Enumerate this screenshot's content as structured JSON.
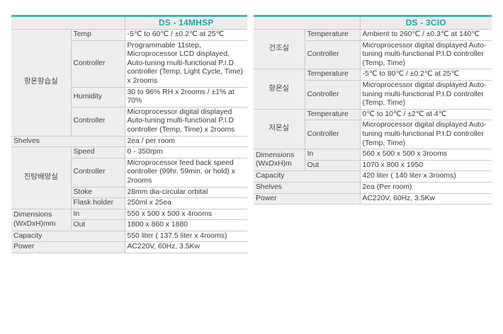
{
  "left": {
    "title": "DS - 14MHSP",
    "rows": [
      {
        "group": "항온항습실",
        "label": "Temp",
        "value": "-5℃ to 60℃ / ±0.2℃ at 25℃"
      },
      {
        "group": "",
        "label": "Controller",
        "value": "Programmable 11step, Microprocessor LCD displayed, Auto-tuning multi-functional P.I.D controller (Temp, Light Cycle, Time) x 2rooms"
      },
      {
        "group": "",
        "label": "Humidity",
        "value": "30 to 96% RH x 2rooms / ±1% at 70%"
      },
      {
        "group": "",
        "label": "Controller",
        "value": "Microprocessor digital displayed Auto-tuning multi-functional P.I.D controller (Temp, Time) x 2rooms"
      },
      {
        "group": "Shelves",
        "label": "",
        "value": "2ea / per room"
      },
      {
        "group": "진탕배양실",
        "label": "Speed",
        "value": "0 - 350rpm"
      },
      {
        "group": "",
        "label": "Controller",
        "value": "Microprocessor feed back speed controller (99hr. 59min. or hold) x 2rooms"
      },
      {
        "group": "",
        "label": "Stoke",
        "value": "28mm dia-circular orbital"
      },
      {
        "group": "",
        "label": "Flask holder",
        "value": "250ml x 25ea"
      },
      {
        "group": "Dimensions (WxDxH)mm",
        "label": "In",
        "value": "550 x 500 x 500 x 4rooms"
      },
      {
        "group": "",
        "label": "Out",
        "value": "1800 x 860 x 1880"
      },
      {
        "group": "Capacity",
        "label": "",
        "value": "550 liter ( 137.5 liter x 4rooms)"
      },
      {
        "group": "Power",
        "label": "",
        "value": "AC220V, 60Hz, 3.5Kw"
      }
    ]
  },
  "right": {
    "title": "DS - 3CIO",
    "rows": [
      {
        "group": "건조실",
        "label": "Temperature",
        "value": "Ambient to 260℃ / ±0.3℃ at 140℃"
      },
      {
        "group": "",
        "label": "Controller",
        "value": "Microprocessor digital displayed Auto-tuning multi-functional P.I.D controller (Temp, Time)"
      },
      {
        "group": "항온실",
        "label": "Temperature",
        "value": "-5℃ to 80℃ / ±0.2℃ at 25℃"
      },
      {
        "group": "",
        "label": "Controller",
        "value": "Microprocessor digital displayed Auto-tuning multi-functional P.I.D controller (Temp, Time)"
      },
      {
        "group": "저온실",
        "label": "Temperature",
        "value": "0℃ to 10℃ / ±2℃ at 4℃"
      },
      {
        "group": "",
        "label": "Controller",
        "value": "Microprocessor digital displayed Auto-tuning multi-functional P.I.D controller (Temp, Time)"
      },
      {
        "group": "Dimensions (WxDxH)m",
        "label": "In",
        "value": "560 x 500 x 500 x 3rooms"
      },
      {
        "group": "",
        "label": "Out",
        "value": "1070 x 800 x 1950"
      },
      {
        "group": "Capacity",
        "label": "",
        "value": "420 liter ( 140 liter x 3rooms)"
      },
      {
        "group": "Shelves",
        "label": "",
        "value": "2ea (Per room)"
      },
      {
        "group": "Power",
        "label": "",
        "value": "AC220V, 60Hz, 3.5Kw"
      }
    ]
  }
}
